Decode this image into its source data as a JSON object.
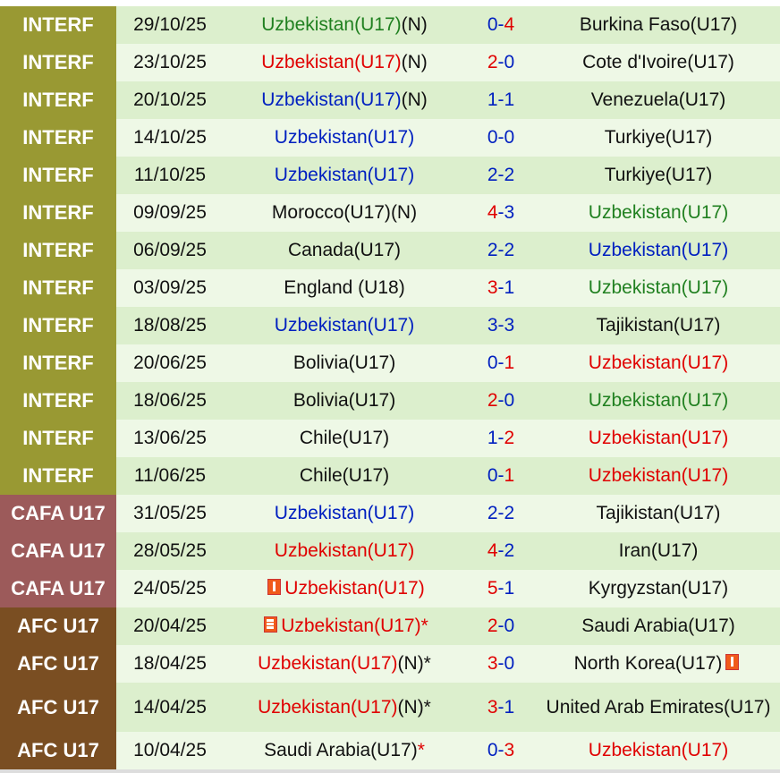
{
  "colors": {
    "INTERF": "#999933",
    "CAFA U17": "#9c5a5a",
    "AFC U17": "#7a4e22",
    "win": "#e00000",
    "draw": "#0020c0",
    "loss": "#208020",
    "neutral": "#111111"
  },
  "matches": [
    {
      "comp": "INTERF",
      "date": "29/10/25",
      "home": "Uzbekistan(U17)",
      "home_suffix": "(N)",
      "home_color": "loss",
      "hs": "0",
      "hs_color": "draw",
      "as": "4",
      "as_color": "win",
      "away": "Burkina Faso(U17)",
      "away_color": "neutral"
    },
    {
      "comp": "INTERF",
      "date": "23/10/25",
      "home": "Uzbekistan(U17)",
      "home_suffix": "(N)",
      "home_color": "win",
      "hs": "2",
      "hs_color": "win",
      "as": "0",
      "as_color": "draw",
      "away": "Cote d'Ivoire(U17)",
      "away_color": "neutral"
    },
    {
      "comp": "INTERF",
      "date": "20/10/25",
      "home": "Uzbekistan(U17)",
      "home_suffix": "(N)",
      "home_color": "draw",
      "hs": "1",
      "hs_color": "draw",
      "as": "1",
      "as_color": "draw",
      "away": "Venezuela(U17)",
      "away_color": "neutral"
    },
    {
      "comp": "INTERF",
      "date": "14/10/25",
      "home": "Uzbekistan(U17)",
      "home_suffix": "",
      "home_color": "draw",
      "hs": "0",
      "hs_color": "draw",
      "as": "0",
      "as_color": "draw",
      "away": "Turkiye(U17)",
      "away_color": "neutral"
    },
    {
      "comp": "INTERF",
      "date": "11/10/25",
      "home": "Uzbekistan(U17)",
      "home_suffix": "",
      "home_color": "draw",
      "hs": "2",
      "hs_color": "draw",
      "as": "2",
      "as_color": "draw",
      "away": "Turkiye(U17)",
      "away_color": "neutral"
    },
    {
      "comp": "INTERF",
      "date": "09/09/25",
      "home": "Morocco(U17)",
      "home_suffix": "(N)",
      "home_color": "neutral",
      "hs": "4",
      "hs_color": "win",
      "as": "3",
      "as_color": "draw",
      "away": "Uzbekistan(U17)",
      "away_color": "loss"
    },
    {
      "comp": "INTERF",
      "date": "06/09/25",
      "home": "Canada(U17)",
      "home_suffix": "",
      "home_color": "neutral",
      "hs": "2",
      "hs_color": "draw",
      "as": "2",
      "as_color": "draw",
      "away": "Uzbekistan(U17)",
      "away_color": "draw"
    },
    {
      "comp": "INTERF",
      "date": "03/09/25",
      "home": "England (U18)",
      "home_suffix": "",
      "home_color": "neutral",
      "hs": "3",
      "hs_color": "win",
      "as": "1",
      "as_color": "draw",
      "away": "Uzbekistan(U17)",
      "away_color": "loss"
    },
    {
      "comp": "INTERF",
      "date": "18/08/25",
      "home": "Uzbekistan(U17)",
      "home_suffix": "",
      "home_color": "draw",
      "hs": "3",
      "hs_color": "draw",
      "as": "3",
      "as_color": "draw",
      "away": "Tajikistan(U17)",
      "away_color": "neutral"
    },
    {
      "comp": "INTERF",
      "date": "20/06/25",
      "home": "Bolivia(U17)",
      "home_suffix": "",
      "home_color": "neutral",
      "hs": "0",
      "hs_color": "draw",
      "as": "1",
      "as_color": "win",
      "away": "Uzbekistan(U17)",
      "away_color": "win"
    },
    {
      "comp": "INTERF",
      "date": "18/06/25",
      "home": "Bolivia(U17)",
      "home_suffix": "",
      "home_color": "neutral",
      "hs": "2",
      "hs_color": "win",
      "as": "0",
      "as_color": "draw",
      "away": "Uzbekistan(U17)",
      "away_color": "loss"
    },
    {
      "comp": "INTERF",
      "date": "13/06/25",
      "home": "Chile(U17)",
      "home_suffix": "",
      "home_color": "neutral",
      "hs": "1",
      "hs_color": "draw",
      "as": "2",
      "as_color": "win",
      "away": "Uzbekistan(U17)",
      "away_color": "win"
    },
    {
      "comp": "INTERF",
      "date": "11/06/25",
      "home": "Chile(U17)",
      "home_suffix": "",
      "home_color": "neutral",
      "hs": "0",
      "hs_color": "draw",
      "as": "1",
      "as_color": "win",
      "away": "Uzbekistan(U17)",
      "away_color": "win"
    },
    {
      "comp": "CAFA U17",
      "date": "31/05/25",
      "home": "Uzbekistan(U17)",
      "home_suffix": "",
      "home_color": "draw",
      "hs": "2",
      "hs_color": "draw",
      "as": "2",
      "as_color": "draw",
      "away": "Tajikistan(U17)",
      "away_color": "neutral"
    },
    {
      "comp": "CAFA U17",
      "date": "28/05/25",
      "home": "Uzbekistan(U17)",
      "home_suffix": "",
      "home_color": "win",
      "hs": "4",
      "hs_color": "win",
      "as": "2",
      "as_color": "draw",
      "away": "Iran(U17)",
      "away_color": "neutral"
    },
    {
      "comp": "CAFA U17",
      "date": "24/05/25",
      "home": "Uzbekistan(U17)",
      "home_suffix": "",
      "home_color": "win",
      "home_card": "1",
      "hs": "5",
      "hs_color": "win",
      "as": "1",
      "as_color": "draw",
      "away": "Kyrgyzstan(U17)",
      "away_color": "neutral"
    },
    {
      "comp": "AFC U17",
      "date": "20/04/25",
      "home": "Uzbekistan(U17)",
      "home_suffix": "*",
      "home_color": "win",
      "home_card": "2",
      "hs": "2",
      "hs_color": "win",
      "as": "0",
      "as_color": "draw",
      "away": "Saudi Arabia(U17)",
      "away_color": "neutral"
    },
    {
      "comp": "AFC U17",
      "date": "18/04/25",
      "home": "Uzbekistan(U17)",
      "home_suffix": "(N)*",
      "home_color": "win",
      "hs": "3",
      "hs_color": "win",
      "as": "0",
      "as_color": "draw",
      "away": "North Korea(U17)",
      "away_color": "neutral",
      "away_card": "1"
    },
    {
      "comp": "AFC U17",
      "date": "14/04/25",
      "home": "Uzbekistan(U17)",
      "home_suffix": "(N)*",
      "home_color": "win",
      "hs": "3",
      "hs_color": "win",
      "as": "1",
      "as_color": "draw",
      "away": "United Arab Emirates(U17)",
      "away_color": "neutral"
    },
    {
      "comp": "AFC U17",
      "date": "10/04/25",
      "home": "Saudi Arabia(U17)",
      "home_suffix": "*",
      "home_color": "neutral",
      "hs": "0",
      "hs_color": "draw",
      "as": "3",
      "as_color": "win",
      "away": "Uzbekistan(U17)",
      "away_color": "win"
    }
  ]
}
